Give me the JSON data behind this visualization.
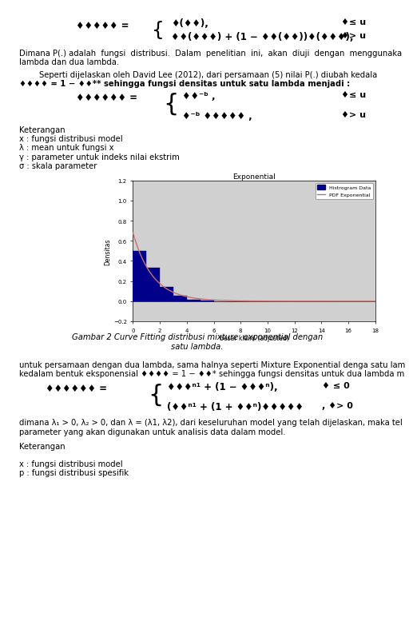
{
  "page_bg": "#ffffff",
  "fig_width": 4.74,
  "fig_height": 7.83,
  "para1_lines": [
    "Dimana P(.) adalah  fungsi  distribusi.  Dalam  penelitian  ini,  akan  diuji  dengan  menggunaka",
    "lambda dan dua lambda."
  ],
  "para2_line1": "        Seperti dijelaskan oleh David Lee (2012), dari persamaan (5) nilai P(.) diubah kedala",
  "para2_line2": "♦♦♦♦ = 1 − ♦♦** sehingga fungsi densitas untuk satu lambda menjadi :",
  "keterangan1": [
    "Keterangan",
    "x : fungsi distribusi model",
    "λ : mean untuk fungsi x",
    "γ : parameter untuk indeks nilai ekstrim",
    "σ : skala parameter"
  ],
  "chart_title": "Exponential",
  "chart_xlabel": "besar klaim (adjusted)",
  "chart_ylabel": "Densitas",
  "chart_xlim": [
    0,
    18
  ],
  "chart_ylim": [
    -0.2,
    1.2
  ],
  "chart_xticks": [
    0,
    2,
    4,
    6,
    8,
    10,
    12,
    14,
    16,
    18
  ],
  "chart_yticks": [
    -0.2,
    0.0,
    0.2,
    0.4,
    0.6,
    0.8,
    1.0,
    1.2
  ],
  "bar_x": [
    0.5,
    1.5,
    2.5,
    3.5,
    4.5,
    5.5
  ],
  "bar_height": [
    0.5,
    0.335,
    0.145,
    0.055,
    0.013,
    0.005
  ],
  "bar_width": 1.0,
  "bar_color": "#00008B",
  "pdf_lambda": 0.68,
  "pdf_color": "#c87070",
  "legend_labels": [
    "Histrogram Data",
    "PDF Exponential"
  ],
  "fig_caption_line1": "Gambar 2 Curve Fitting distribusi mixture  exponential dengan",
  "fig_caption_line2": "satu lambda.",
  "para3_lines": [
    "untuk persamaan dengan dua lambda, sama halnya seperti Mixture Exponential denga satu lam",
    "kedalam bentuk eksponensial ♦♦♦♦ = 1 − ♦♦* sehingga fungsi densitas untuk dua lambda m"
  ],
  "para4_lines": [
    "dimana λ₁ > 0, λ₂ > 0, dan λ = (λ1, λ2), dari keseluruhan model yang telah dijelaskan, maka tel",
    "parameter yang akan digunakan untuk analisis data dalam model."
  ],
  "keterangan2": [
    "Keterangan",
    "",
    "x : fungsi distribusi model",
    "p : fungsi distribusi spesifik"
  ]
}
